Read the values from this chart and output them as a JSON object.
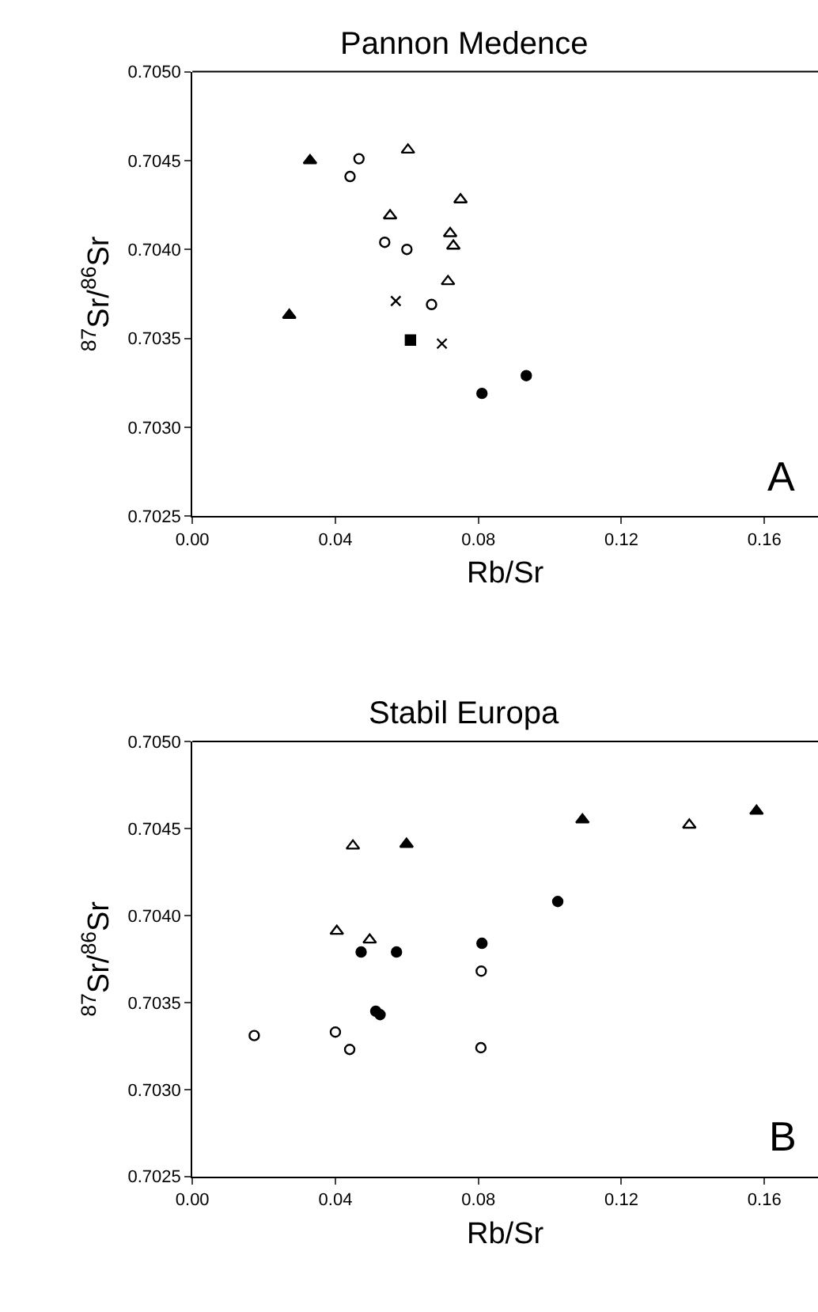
{
  "chart_data": [
    {
      "type": "scatter",
      "title": "Pannon Medence",
      "xlabel": "Rb/Sr",
      "ylabel": "$^{87}$Sr/$^{86}$Sr",
      "xlim": [
        0,
        0.175
      ],
      "xticks": [
        {
          "value": 0,
          "label": "0.00"
        },
        {
          "value": 0.04,
          "label": "0.04"
        },
        {
          "value": 0.08,
          "label": "0.08"
        },
        {
          "value": 0.12,
          "label": "0.12"
        },
        {
          "value": 0.16,
          "label": "0.16"
        }
      ],
      "ylim": [
        0.7025,
        0.705
      ],
      "yticks": [
        {
          "value": 0.7025,
          "label": "0.7025"
        },
        {
          "value": 0.703,
          "label": "0.7030"
        },
        {
          "value": 0.7035,
          "label": "0.7035"
        },
        {
          "value": 0.704,
          "label": "0.7040"
        },
        {
          "value": 0.7045,
          "label": "0.7045"
        },
        {
          "value": 0.705,
          "label": "0.7050"
        }
      ],
      "annotations": [
        "A"
      ],
      "series": [
        {
          "color": "#000000",
          "marker": "triangle",
          "x": [
            0.0329,
            0.0271
          ],
          "values": [
            0.7045,
            0.70363
          ]
        },
        {
          "color": "#000000",
          "marker": "circle-open",
          "x": [
            0.0441,
            0.0466,
            0.0538,
            0.06,
            0.0669
          ],
          "values": [
            0.70441,
            0.70451,
            0.70404,
            0.704,
            0.70369
          ]
        },
        {
          "color": "#000000",
          "marker": "triangle-open",
          "x": [
            0.0603,
            0.0553,
            0.075,
            0.0721,
            0.073,
            0.0715
          ],
          "values": [
            0.70456,
            0.70419,
            0.70428,
            0.70409,
            0.70402,
            0.70382
          ]
        },
        {
          "color": "#000000",
          "marker": "cross",
          "x": [
            0.0569,
            0.0698
          ],
          "values": [
            0.70371,
            0.70347
          ]
        },
        {
          "color": "#000000",
          "marker": "square",
          "x": [
            0.061
          ],
          "values": [
            0.70349
          ]
        },
        {
          "color": "#000000",
          "marker": "circle",
          "x": [
            0.081,
            0.0934
          ],
          "values": [
            0.70319,
            0.70329
          ]
        }
      ]
    },
    {
      "type": "scatter",
      "title": "Stabil Europa",
      "xlabel": "Rb/Sr",
      "ylabel": "$^{87}$Sr/$^{86}$Sr",
      "xlim": [
        0,
        0.175
      ],
      "xticks": [
        {
          "value": 0,
          "label": "0.00"
        },
        {
          "value": 0.04,
          "label": "0.04"
        },
        {
          "value": 0.08,
          "label": "0.08"
        },
        {
          "value": 0.12,
          "label": "0.12"
        },
        {
          "value": 0.16,
          "label": "0.16"
        }
      ],
      "ylim": [
        0.7025,
        0.705
      ],
      "yticks": [
        {
          "value": 0.7025,
          "label": "0.7025"
        },
        {
          "value": 0.703,
          "label": "0.7030"
        },
        {
          "value": 0.7035,
          "label": "0.7035"
        },
        {
          "value": 0.704,
          "label": "0.7040"
        },
        {
          "value": 0.7045,
          "label": "0.7045"
        },
        {
          "value": 0.705,
          "label": "0.7050"
        }
      ],
      "annotations": [
        "B"
      ],
      "series": [
        {
          "color": "#000000",
          "marker": "circle-open",
          "x": [
            0.0173,
            0.04,
            0.044,
            0.0807,
            0.0808
          ],
          "values": [
            0.70331,
            0.70333,
            0.70323,
            0.70324,
            0.70368
          ]
        },
        {
          "color": "#000000",
          "marker": "triangle-open",
          "x": [
            0.0449,
            0.0404,
            0.0496,
            0.139
          ],
          "values": [
            0.7044,
            0.70391,
            0.70386,
            0.70452
          ]
        },
        {
          "color": "#000000",
          "marker": "triangle",
          "x": [
            0.0599,
            0.1091,
            0.1578
          ],
          "values": [
            0.70441,
            0.70455,
            0.7046
          ]
        },
        {
          "color": "#000000",
          "marker": "circle",
          "x": [
            0.0472,
            0.0571,
            0.081,
            0.1022,
            0.0513,
            0.0525
          ],
          "values": [
            0.70379,
            0.70379,
            0.70384,
            0.70408,
            0.70345,
            0.70343
          ]
        }
      ]
    }
  ]
}
